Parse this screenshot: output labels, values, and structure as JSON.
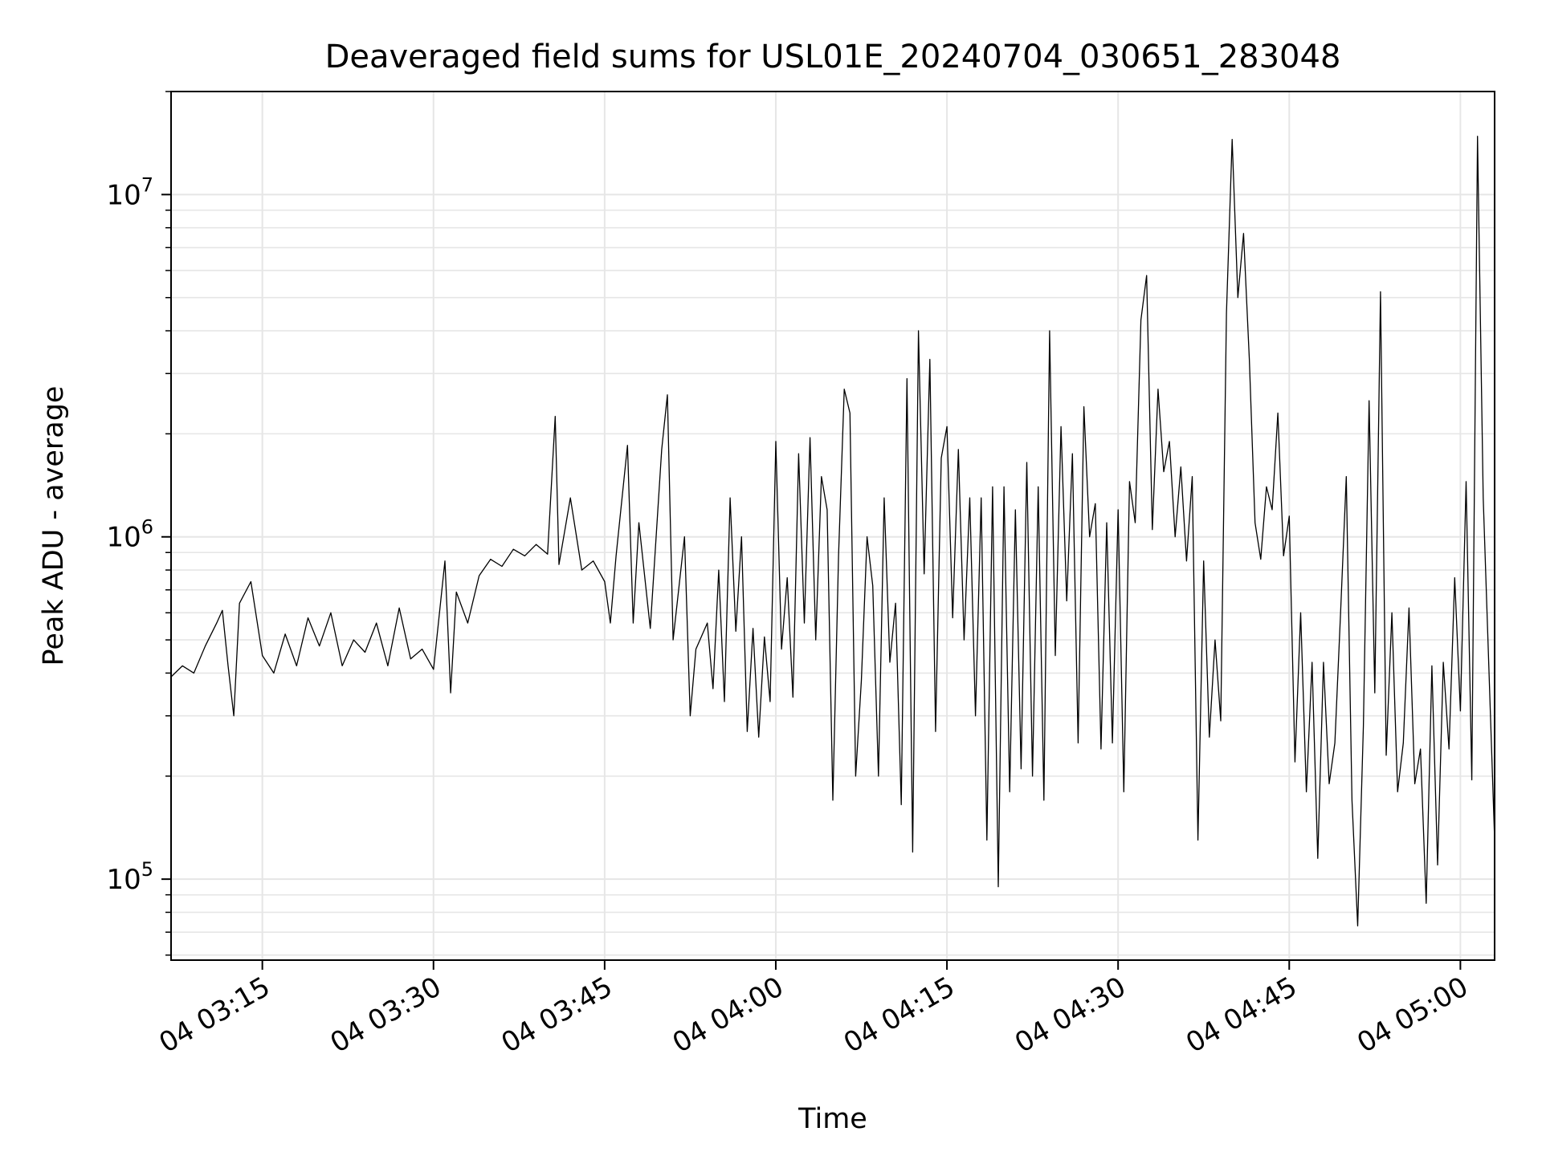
{
  "chart_data": {
    "type": "line",
    "title": "Deaveraged field sums for USL01E_20240704_030651_283048",
    "xlabel": "Time",
    "ylabel": "Peak ADU - average",
    "y_scale": "log",
    "grid": true,
    "line_color": "#000000",
    "grid_color": "#e6e6e6",
    "xlim": [
      "04 03:07",
      "04 05:03"
    ],
    "ylim": [
      58000,
      20000000
    ],
    "x_ticks": [
      "04 03:15",
      "04 03:30",
      "04 03:45",
      "04 04:00",
      "04 04:15",
      "04 04:30",
      "04 04:45",
      "04 05:00"
    ],
    "y_ticks": [
      {
        "base": "10",
        "exp": "5",
        "value": 100000
      },
      {
        "base": "10",
        "exp": "6",
        "value": 1000000
      },
      {
        "base": "10",
        "exp": "7",
        "value": 10000000
      }
    ],
    "series": [
      {
        "points": [
          [
            "04 03:07",
            390000
          ],
          [
            "04 03:08",
            420000
          ],
          [
            "04 03:09",
            400000
          ],
          [
            "04 03:10",
            480000
          ],
          [
            "04 03:11",
            560000
          ],
          [
            "04 03:11:30",
            610000
          ],
          [
            "04 03:12",
            420000
          ],
          [
            "04 03:12:30",
            300000
          ],
          [
            "04 03:13",
            640000
          ],
          [
            "04 03:14",
            740000
          ],
          [
            "04 03:15",
            450000
          ],
          [
            "04 03:16",
            400000
          ],
          [
            "04 03:17",
            520000
          ],
          [
            "04 03:18",
            420000
          ],
          [
            "04 03:19",
            580000
          ],
          [
            "04 03:20",
            480000
          ],
          [
            "04 03:21",
            600000
          ],
          [
            "04 03:22",
            420000
          ],
          [
            "04 03:23",
            500000
          ],
          [
            "04 03:24",
            460000
          ],
          [
            "04 03:25",
            560000
          ],
          [
            "04 03:26",
            420000
          ],
          [
            "04 03:27",
            620000
          ],
          [
            "04 03:28",
            440000
          ],
          [
            "04 03:29",
            470000
          ],
          [
            "04 03:30",
            410000
          ],
          [
            "04 03:31",
            850000
          ],
          [
            "04 03:31:30",
            350000
          ],
          [
            "04 03:32",
            690000
          ],
          [
            "04 03:33",
            560000
          ],
          [
            "04 03:34",
            770000
          ],
          [
            "04 03:35",
            860000
          ],
          [
            "04 03:36",
            820000
          ],
          [
            "04 03:37",
            920000
          ],
          [
            "04 03:38",
            880000
          ],
          [
            "04 03:39",
            950000
          ],
          [
            "04 03:40",
            890000
          ],
          [
            "04 03:40:40",
            2250000
          ],
          [
            "04 03:41",
            830000
          ],
          [
            "04 03:42",
            1300000
          ],
          [
            "04 03:43",
            800000
          ],
          [
            "04 03:44",
            850000
          ],
          [
            "04 03:45",
            740000
          ],
          [
            "04 03:45:30",
            560000
          ],
          [
            "04 03:46",
            880000
          ],
          [
            "04 03:47",
            1850000
          ],
          [
            "04 03:47:30",
            560000
          ],
          [
            "04 03:48",
            1100000
          ],
          [
            "04 03:49",
            540000
          ],
          [
            "04 03:50",
            1800000
          ],
          [
            "04 03:50:30",
            2600000
          ],
          [
            "04 03:51",
            500000
          ],
          [
            "04 03:52",
            1000000
          ],
          [
            "04 03:52:30",
            300000
          ],
          [
            "04 03:53",
            470000
          ],
          [
            "04 03:54",
            560000
          ],
          [
            "04 03:54:30",
            360000
          ],
          [
            "04 03:55",
            800000
          ],
          [
            "04 03:55:30",
            330000
          ],
          [
            "04 03:56",
            1300000
          ],
          [
            "04 03:56:30",
            530000
          ],
          [
            "04 03:57",
            1000000
          ],
          [
            "04 03:57:30",
            270000
          ],
          [
            "04 03:58",
            540000
          ],
          [
            "04 03:58:30",
            260000
          ],
          [
            "04 03:59",
            510000
          ],
          [
            "04 03:59:30",
            330000
          ],
          [
            "04 04:00",
            1900000
          ],
          [
            "04 04:00:30",
            470000
          ],
          [
            "04 04:01",
            760000
          ],
          [
            "04 04:01:30",
            340000
          ],
          [
            "04 04:02",
            1750000
          ],
          [
            "04 04:02:30",
            560000
          ],
          [
            "04 04:03",
            1950000
          ],
          [
            "04 04:03:30",
            500000
          ],
          [
            "04 04:04",
            1500000
          ],
          [
            "04 04:04:30",
            1200000
          ],
          [
            "04 04:05",
            170000
          ],
          [
            "04 04:05:30",
            880000
          ],
          [
            "04 04:06",
            2700000
          ],
          [
            "04 04:06:30",
            2300000
          ],
          [
            "04 04:07",
            200000
          ],
          [
            "04 04:07:30",
            380000
          ],
          [
            "04 04:08",
            1000000
          ],
          [
            "04 04:08:30",
            720000
          ],
          [
            "04 04:09",
            200000
          ],
          [
            "04 04:09:30",
            1300000
          ],
          [
            "04 04:10",
            430000
          ],
          [
            "04 04:10:30",
            640000
          ],
          [
            "04 04:11",
            165000
          ],
          [
            "04 04:11:30",
            2900000
          ],
          [
            "04 04:12",
            120000
          ],
          [
            "04 04:12:30",
            4000000
          ],
          [
            "04 04:13",
            780000
          ],
          [
            "04 04:13:30",
            3300000
          ],
          [
            "04 04:14",
            270000
          ],
          [
            "04 04:14:30",
            1700000
          ],
          [
            "04 04:15",
            2100000
          ],
          [
            "04 04:15:30",
            580000
          ],
          [
            "04 04:16",
            1800000
          ],
          [
            "04 04:16:30",
            500000
          ],
          [
            "04 04:17",
            1300000
          ],
          [
            "04 04:17:30",
            300000
          ],
          [
            "04 04:18",
            1300000
          ],
          [
            "04 04:18:30",
            130000
          ],
          [
            "04 04:19",
            1400000
          ],
          [
            "04 04:19:30",
            95000
          ],
          [
            "04 04:20",
            1400000
          ],
          [
            "04 04:20:30",
            180000
          ],
          [
            "04 04:21",
            1200000
          ],
          [
            "04 04:21:30",
            210000
          ],
          [
            "04 04:22",
            1650000
          ],
          [
            "04 04:22:30",
            200000
          ],
          [
            "04 04:23",
            1400000
          ],
          [
            "04 04:23:30",
            170000
          ],
          [
            "04 04:24",
            4000000
          ],
          [
            "04 04:24:30",
            450000
          ],
          [
            "04 04:25",
            2100000
          ],
          [
            "04 04:25:30",
            650000
          ],
          [
            "04 04:26",
            1750000
          ],
          [
            "04 04:26:30",
            250000
          ],
          [
            "04 04:27",
            2400000
          ],
          [
            "04 04:27:30",
            1000000
          ],
          [
            "04 04:28",
            1250000
          ],
          [
            "04 04:28:30",
            240000
          ],
          [
            "04 04:29",
            1100000
          ],
          [
            "04 04:29:30",
            250000
          ],
          [
            "04 04:30",
            1200000
          ],
          [
            "04 04:30:30",
            180000
          ],
          [
            "04 04:31",
            1450000
          ],
          [
            "04 04:31:30",
            1100000
          ],
          [
            "04 04:32",
            4300000
          ],
          [
            "04 04:32:30",
            5800000
          ],
          [
            "04 04:33",
            1050000
          ],
          [
            "04 04:33:30",
            2700000
          ],
          [
            "04 04:34",
            1550000
          ],
          [
            "04 04:34:30",
            1900000
          ],
          [
            "04 04:35",
            1000000
          ],
          [
            "04 04:35:30",
            1600000
          ],
          [
            "04 04:36",
            850000
          ],
          [
            "04 04:36:30",
            1500000
          ],
          [
            "04 04:37",
            130000
          ],
          [
            "04 04:37:30",
            850000
          ],
          [
            "04 04:38",
            260000
          ],
          [
            "04 04:38:30",
            500000
          ],
          [
            "04 04:39",
            290000
          ],
          [
            "04 04:39:30",
            4500000
          ],
          [
            "04 04:40",
            14500000
          ],
          [
            "04 04:40:30",
            5000000
          ],
          [
            "04 04:41",
            7700000
          ],
          [
            "04 04:41:30",
            3300000
          ],
          [
            "04 04:42",
            1100000
          ],
          [
            "04 04:42:30",
            860000
          ],
          [
            "04 04:43",
            1400000
          ],
          [
            "04 04:43:30",
            1200000
          ],
          [
            "04 04:44",
            2300000
          ],
          [
            "04 04:44:30",
            880000
          ],
          [
            "04 04:45",
            1150000
          ],
          [
            "04 04:45:30",
            220000
          ],
          [
            "04 04:46",
            600000
          ],
          [
            "04 04:46:30",
            180000
          ],
          [
            "04 04:47",
            430000
          ],
          [
            "04 04:47:30",
            115000
          ],
          [
            "04 04:48",
            430000
          ],
          [
            "04 04:48:30",
            190000
          ],
          [
            "04 04:49",
            250000
          ],
          [
            "04 04:49:30",
            600000
          ],
          [
            "04 04:50",
            1500000
          ],
          [
            "04 04:50:30",
            170000
          ],
          [
            "04 04:51",
            73000
          ],
          [
            "04 04:51:30",
            280000
          ],
          [
            "04 04:52",
            2500000
          ],
          [
            "04 04:52:30",
            350000
          ],
          [
            "04 04:53",
            5200000
          ],
          [
            "04 04:53:30",
            230000
          ],
          [
            "04 04:54",
            600000
          ],
          [
            "04 04:54:30",
            180000
          ],
          [
            "04 04:55",
            250000
          ],
          [
            "04 04:55:30",
            620000
          ],
          [
            "04 04:56",
            190000
          ],
          [
            "04 04:56:30",
            240000
          ],
          [
            "04 04:57",
            85000
          ],
          [
            "04 04:57:30",
            420000
          ],
          [
            "04 04:58",
            110000
          ],
          [
            "04 04:58:30",
            430000
          ],
          [
            "04 04:59",
            240000
          ],
          [
            "04 04:59:30",
            760000
          ],
          [
            "04 05:00",
            310000
          ],
          [
            "04 05:00:30",
            1450000
          ],
          [
            "04 05:01",
            195000
          ],
          [
            "04 05:01:30",
            14800000
          ],
          [
            "04 05:02",
            1300000
          ],
          [
            "04 05:03",
            130000
          ]
        ]
      }
    ]
  }
}
